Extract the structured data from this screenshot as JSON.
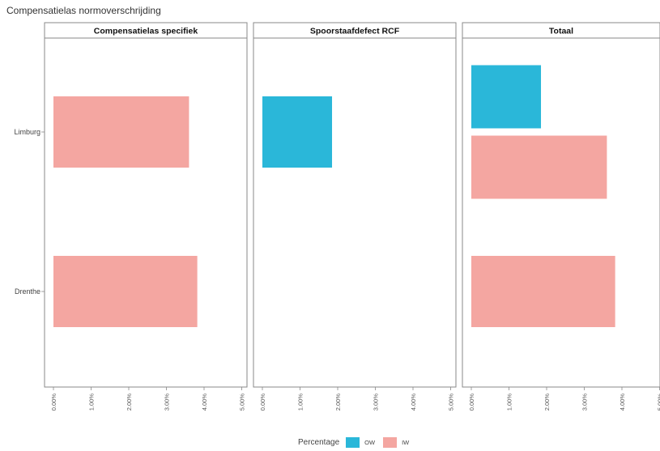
{
  "chart_data": {
    "type": "bar",
    "orientation": "horizontal",
    "title": "Compensatielas normoverschrijding",
    "facets": [
      "Compensatielas specifiek",
      "Spoorstaafdefect RCF",
      "Totaal"
    ],
    "categories": [
      "Limburg",
      "Drenthe"
    ],
    "x_ticks": [
      "0.00%",
      "1.00%",
      "2.00%",
      "3.00%",
      "4.00%",
      "5.00%"
    ],
    "xlim": [
      0,
      5
    ],
    "legend": {
      "title": "Percentage",
      "placement": "bottom",
      "entries": [
        {
          "label": "OW",
          "color": "#2ab7d9"
        },
        {
          "label": "IW",
          "color": "#f4a6a1"
        }
      ]
    },
    "series": [
      {
        "name": "OW",
        "color": "#2ab7d9",
        "values": {
          "Compensatielas specifiek": {
            "Limburg": null,
            "Drenthe": null
          },
          "Spoorstaafdefect RCF": {
            "Limburg": 1.85,
            "Drenthe": null
          },
          "Totaal": {
            "Limburg": 1.85,
            "Drenthe": null
          }
        }
      },
      {
        "name": "IW",
        "color": "#f4a6a1",
        "values": {
          "Compensatielas specifiek": {
            "Limburg": 3.6,
            "Drenthe": 3.82
          },
          "Spoorstaafdefect RCF": {
            "Limburg": null,
            "Drenthe": null
          },
          "Totaal": {
            "Limburg": 3.6,
            "Drenthe": 3.82
          }
        }
      }
    ]
  }
}
